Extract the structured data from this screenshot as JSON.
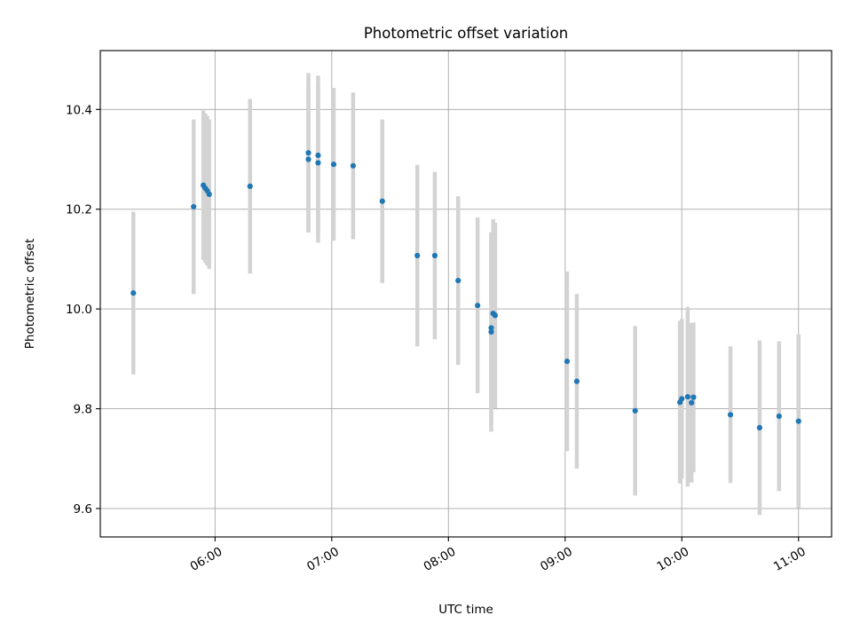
{
  "chart_data": {
    "type": "scatter",
    "title": "Photometric offset variation",
    "xlabel": "UTC time",
    "ylabel": "Photometric offset",
    "x_unit": "UTC time (HH:MM)",
    "xlim": [
      "05:01",
      "11:17"
    ],
    "ylim": [
      9.543,
      10.518
    ],
    "xticks": [
      "06:00",
      "07:00",
      "08:00",
      "09:00",
      "10:00",
      "11:00"
    ],
    "yticks": [
      "9.6",
      "9.8",
      "10.0",
      "10.2",
      "10.4"
    ],
    "grid": true,
    "colors": {
      "points": "#1f77b4",
      "errorbars": "#d3d3d3"
    },
    "points": [
      {
        "t": "05:18",
        "y": 10.032,
        "err": 0.163
      },
      {
        "t": "05:49",
        "y": 10.205,
        "err": 0.175
      },
      {
        "t": "05:54",
        "y": 10.248,
        "err": 0.15
      },
      {
        "t": "05:55",
        "y": 10.242,
        "err": 0.15
      },
      {
        "t": "05:56",
        "y": 10.237,
        "err": 0.15
      },
      {
        "t": "05:57",
        "y": 10.23,
        "err": 0.15
      },
      {
        "t": "06:18",
        "y": 10.246,
        "err": 0.175
      },
      {
        "t": "06:48",
        "y": 10.313,
        "err": 0.16
      },
      {
        "t": "06:48",
        "y": 10.3,
        "err": 0.145
      },
      {
        "t": "06:53",
        "y": 10.308,
        "err": 0.16
      },
      {
        "t": "06:53",
        "y": 10.293,
        "err": 0.16
      },
      {
        "t": "07:01",
        "y": 10.29,
        "err": 0.153
      },
      {
        "t": "07:11",
        "y": 10.287,
        "err": 0.147
      },
      {
        "t": "07:26",
        "y": 10.216,
        "err": 0.164
      },
      {
        "t": "07:44",
        "y": 10.107,
        "err": 0.182
      },
      {
        "t": "07:53",
        "y": 10.107,
        "err": 0.168
      },
      {
        "t": "08:05",
        "y": 10.057,
        "err": 0.169
      },
      {
        "t": "08:15",
        "y": 10.007,
        "err": 0.176
      },
      {
        "t": "08:22",
        "y": 9.962,
        "err": 0.191
      },
      {
        "t": "08:22",
        "y": 9.954,
        "err": 0.2
      },
      {
        "t": "08:23",
        "y": 9.991,
        "err": 0.189
      },
      {
        "t": "08:24",
        "y": 9.987,
        "err": 0.186
      },
      {
        "t": "09:01",
        "y": 9.895,
        "err": 0.18
      },
      {
        "t": "09:06",
        "y": 9.855,
        "err": 0.175
      },
      {
        "t": "09:36",
        "y": 9.796,
        "err": 0.17
      },
      {
        "t": "09:59",
        "y": 9.813,
        "err": 0.163
      },
      {
        "t": "10:00",
        "y": 9.82,
        "err": 0.16
      },
      {
        "t": "10:03",
        "y": 9.824,
        "err": 0.18
      },
      {
        "t": "10:05",
        "y": 9.812,
        "err": 0.16
      },
      {
        "t": "10:06",
        "y": 9.823,
        "err": 0.15
      },
      {
        "t": "10:25",
        "y": 9.788,
        "err": 0.137
      },
      {
        "t": "10:40",
        "y": 9.762,
        "err": 0.175
      },
      {
        "t": "10:50",
        "y": 9.785,
        "err": 0.15
      },
      {
        "t": "11:00",
        "y": 9.775,
        "err": 0.174
      }
    ]
  }
}
